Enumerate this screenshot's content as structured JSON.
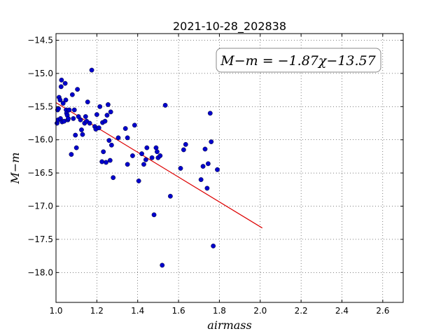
{
  "chart_data": {
    "type": "scatter",
    "title": "2021-10-28_202838",
    "xlabel": "airmass",
    "ylabel": "M−m",
    "xlim": [
      1.0,
      2.7
    ],
    "ylim": [
      -18.45,
      -14.4
    ],
    "x_ticks": [
      1.0,
      1.2,
      1.4,
      1.6,
      1.8,
      2.0,
      2.2,
      2.4,
      2.6
    ],
    "x_tick_labels": [
      "1.0",
      "1.2",
      "1.4",
      "1.6",
      "1.8",
      "2.0",
      "2.2",
      "2.4",
      "2.6"
    ],
    "y_ticks": [
      -14.5,
      -15.0,
      -15.5,
      -16.0,
      -16.5,
      -17.0,
      -17.5,
      -18.0
    ],
    "y_tick_labels": [
      "−14.5",
      "−15.0",
      "−15.5",
      "−16.0",
      "−16.5",
      "−17.0",
      "−17.5",
      "−18.0"
    ],
    "grid": true,
    "annotation": "M−m = −1.87χ−13.57",
    "annotation_placement": "top-right",
    "point_color": "#0000cc",
    "fit_color": "#dd0000",
    "fit": {
      "slope": -1.87,
      "intercept": -13.57,
      "x_range": [
        1.0,
        2.01
      ]
    },
    "points": [
      [
        1.005,
        -15.75
      ],
      [
        1.008,
        -15.55
      ],
      [
        1.01,
        -15.7
      ],
      [
        1.012,
        -15.53
      ],
      [
        1.015,
        -15.36
      ],
      [
        1.02,
        -15.4
      ],
      [
        1.022,
        -15.68
      ],
      [
        1.025,
        -15.2
      ],
      [
        1.027,
        -15.1
      ],
      [
        1.03,
        -15.73
      ],
      [
        1.035,
        -15.45
      ],
      [
        1.04,
        -15.72
      ],
      [
        1.045,
        -15.15
      ],
      [
        1.048,
        -15.4
      ],
      [
        1.05,
        -15.55
      ],
      [
        1.052,
        -15.6
      ],
      [
        1.055,
        -15.63
      ],
      [
        1.058,
        -15.7
      ],
      [
        1.06,
        -15.68
      ],
      [
        1.065,
        -15.55
      ],
      [
        1.075,
        -16.22
      ],
      [
        1.08,
        -15.32
      ],
      [
        1.085,
        -15.68
      ],
      [
        1.09,
        -15.55
      ],
      [
        1.095,
        -15.93
      ],
      [
        1.1,
        -16.12
      ],
      [
        1.105,
        -15.24
      ],
      [
        1.11,
        -15.65
      ],
      [
        1.12,
        -15.7
      ],
      [
        1.125,
        -15.85
      ],
      [
        1.13,
        -15.92
      ],
      [
        1.14,
        -15.75
      ],
      [
        1.145,
        -15.65
      ],
      [
        1.15,
        -15.72
      ],
      [
        1.155,
        -15.43
      ],
      [
        1.165,
        -15.75
      ],
      [
        1.175,
        -14.95
      ],
      [
        1.19,
        -15.8
      ],
      [
        1.195,
        -15.84
      ],
      [
        1.2,
        -15.62
      ],
      [
        1.21,
        -15.82
      ],
      [
        1.215,
        -15.5
      ],
      [
        1.225,
        -16.33
      ],
      [
        1.228,
        -15.74
      ],
      [
        1.232,
        -16.18
      ],
      [
        1.24,
        -15.72
      ],
      [
        1.245,
        -16.34
      ],
      [
        1.25,
        -15.63
      ],
      [
        1.255,
        -15.47
      ],
      [
        1.26,
        -16.01
      ],
      [
        1.265,
        -16.31
      ],
      [
        1.268,
        -15.58
      ],
      [
        1.272,
        -16.08
      ],
      [
        1.28,
        -16.57
      ],
      [
        1.305,
        -15.97
      ],
      [
        1.34,
        -15.83
      ],
      [
        1.35,
        -15.97
      ],
      [
        1.35,
        -16.37
      ],
      [
        1.375,
        -16.24
      ],
      [
        1.385,
        -15.78
      ],
      [
        1.405,
        -16.62
      ],
      [
        1.42,
        -16.21
      ],
      [
        1.43,
        -16.37
      ],
      [
        1.44,
        -16.3
      ],
      [
        1.445,
        -16.12
      ],
      [
        1.47,
        -16.27
      ],
      [
        1.48,
        -17.13
      ],
      [
        1.49,
        -16.12
      ],
      [
        1.495,
        -16.18
      ],
      [
        1.5,
        -16.27
      ],
      [
        1.51,
        -16.24
      ],
      [
        1.52,
        -17.89
      ],
      [
        1.535,
        -15.48
      ],
      [
        1.56,
        -16.85
      ],
      [
        1.61,
        -16.43
      ],
      [
        1.625,
        -16.15
      ],
      [
        1.635,
        -16.07
      ],
      [
        1.71,
        -16.6
      ],
      [
        1.72,
        -16.4
      ],
      [
        1.73,
        -16.14
      ],
      [
        1.74,
        -16.73
      ],
      [
        1.745,
        -16.36
      ],
      [
        1.755,
        -15.6
      ],
      [
        1.76,
        -16.03
      ],
      [
        1.77,
        -17.6
      ],
      [
        1.79,
        -16.45
      ]
    ]
  }
}
